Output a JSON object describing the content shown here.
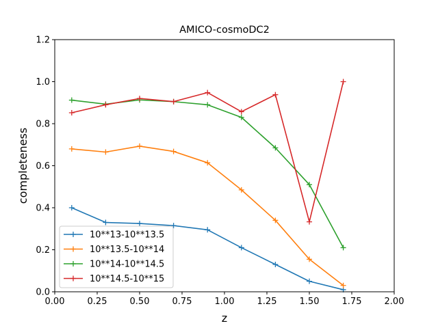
{
  "chart_data": {
    "type": "line",
    "title": "AMICO-cosmoDC2",
    "xlabel": "z",
    "ylabel": "completeness",
    "xlim": [
      0.0,
      2.0
    ],
    "ylim": [
      0.0,
      1.2
    ],
    "xticks": [
      "0.00",
      "0.25",
      "0.50",
      "0.75",
      "1.00",
      "1.25",
      "1.50",
      "1.75",
      "2.00"
    ],
    "yticks": [
      "0.0",
      "0.2",
      "0.4",
      "0.6",
      "0.8",
      "1.0",
      "1.2"
    ],
    "xtick_values": [
      0.0,
      0.25,
      0.5,
      0.75,
      1.0,
      1.25,
      1.5,
      1.75,
      2.0
    ],
    "ytick_values": [
      0.0,
      0.2,
      0.4,
      0.6,
      0.8,
      1.0,
      1.2
    ],
    "grid": false,
    "legend_position": "lower-left",
    "x": [
      0.1,
      0.3,
      0.5,
      0.7,
      0.9,
      1.1,
      1.3,
      1.5,
      1.7
    ],
    "series": [
      {
        "name": "10**13-10**13.5",
        "color": "#1f77b4",
        "values": [
          0.4,
          0.33,
          0.325,
          0.315,
          0.295,
          0.21,
          0.13,
          0.05,
          0.01
        ]
      },
      {
        "name": "10**13.5-10**14",
        "color": "#ff7f0e",
        "values": [
          0.68,
          0.665,
          0.693,
          0.668,
          0.614,
          0.485,
          0.34,
          0.155,
          0.03
        ]
      },
      {
        "name": "10**14-10**14.5",
        "color": "#2ca02c",
        "values": [
          0.912,
          0.893,
          0.913,
          0.905,
          0.89,
          0.83,
          0.685,
          0.51,
          0.21
        ]
      },
      {
        "name": "10**14.5-10**15",
        "color": "#d62728",
        "values": [
          0.852,
          0.89,
          0.92,
          0.905,
          0.948,
          0.857,
          0.938,
          0.333,
          1.0
        ]
      }
    ]
  }
}
